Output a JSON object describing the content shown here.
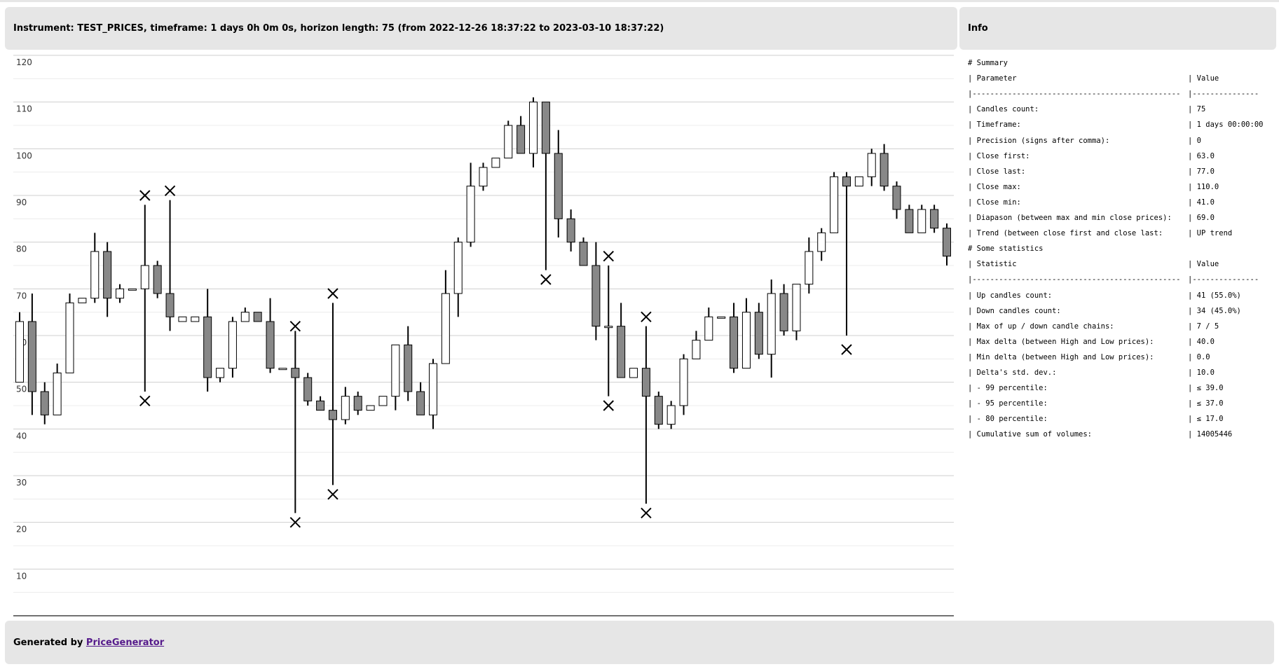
{
  "chart_data": {
    "type": "candlestick",
    "title": "Instrument: TEST_PRICES, timeframe: 1 days 0h 0m 0s, horizon length: 75 (from 2022-12-26 18:37:22 to 2023-03-10 18:37:22)",
    "open": [
      50,
      63,
      48,
      43,
      52,
      67,
      68,
      78,
      68,
      70,
      70,
      75,
      69,
      63,
      63,
      64,
      51,
      53,
      63,
      65,
      63,
      53,
      53,
      51,
      46,
      44,
      42,
      47,
      44,
      45,
      47,
      58,
      48,
      43,
      54,
      69,
      80,
      92,
      96,
      98,
      105,
      99,
      110,
      99,
      85,
      80,
      75,
      62,
      62,
      51,
      53,
      47,
      41,
      45,
      55,
      59,
      64,
      64,
      53,
      65,
      56,
      69,
      61,
      71,
      78,
      82,
      94,
      92,
      94,
      99,
      92,
      87,
      82,
      87,
      83
    ],
    "high": [
      65,
      69,
      50,
      54,
      69,
      68,
      82,
      80,
      71,
      70,
      88,
      76,
      89,
      64,
      64,
      70,
      53,
      64,
      66,
      65,
      68,
      53,
      61,
      52,
      47,
      67,
      49,
      48,
      45,
      47,
      58,
      62,
      50,
      55,
      74,
      81,
      97,
      97,
      98,
      106,
      107,
      111,
      110,
      104,
      87,
      81,
      80,
      75,
      67,
      53,
      62,
      48,
      46,
      56,
      61,
      66,
      64,
      67,
      68,
      67,
      72,
      71,
      71,
      81,
      83,
      95,
      95,
      94,
      100,
      101,
      93,
      88,
      88,
      88,
      84
    ],
    "low": [
      50,
      43,
      41,
      43,
      52,
      67,
      67,
      64,
      67,
      70,
      48,
      68,
      61,
      63,
      63,
      48,
      50,
      51,
      63,
      63,
      52,
      53,
      22,
      45,
      44,
      28,
      41,
      43,
      44,
      45,
      44,
      46,
      43,
      40,
      54,
      64,
      79,
      91,
      96,
      98,
      99,
      96,
      74,
      81,
      78,
      75,
      59,
      47,
      51,
      51,
      24,
      40,
      40,
      43,
      55,
      59,
      64,
      52,
      53,
      55,
      51,
      60,
      59,
      69,
      76,
      82,
      60,
      92,
      92,
      91,
      85,
      82,
      82,
      82,
      75
    ],
    "close": [
      63,
      48,
      43,
      52,
      67,
      68,
      78,
      68,
      70,
      70,
      75,
      69,
      64,
      64,
      64,
      51,
      53,
      63,
      65,
      63,
      53,
      53,
      51,
      46,
      44,
      42,
      47,
      44,
      45,
      47,
      58,
      48,
      43,
      54,
      69,
      80,
      92,
      96,
      98,
      105,
      99,
      110,
      99,
      85,
      80,
      75,
      62,
      62,
      51,
      53,
      47,
      41,
      45,
      55,
      59,
      64,
      64,
      53,
      65,
      56,
      69,
      61,
      71,
      78,
      82,
      94,
      92,
      94,
      99,
      92,
      87,
      82,
      87,
      83,
      77
    ],
    "marker_high": [
      null,
      null,
      null,
      null,
      null,
      null,
      null,
      null,
      null,
      null,
      90,
      null,
      91,
      null,
      null,
      null,
      null,
      null,
      null,
      null,
      null,
      null,
      62,
      null,
      null,
      69,
      null,
      null,
      null,
      null,
      null,
      null,
      null,
      null,
      null,
      null,
      null,
      null,
      null,
      null,
      null,
      null,
      null,
      null,
      null,
      null,
      null,
      77,
      null,
      null,
      64,
      null,
      null,
      null,
      null,
      null,
      null,
      null,
      null,
      null,
      null,
      null,
      null,
      null,
      null,
      null,
      null,
      null,
      null,
      null,
      null,
      null,
      null,
      null,
      null
    ],
    "marker_low": [
      null,
      null,
      null,
      null,
      null,
      null,
      null,
      null,
      null,
      null,
      46,
      null,
      null,
      null,
      null,
      null,
      null,
      null,
      null,
      null,
      null,
      null,
      20,
      null,
      null,
      26,
      null,
      null,
      null,
      null,
      null,
      null,
      null,
      null,
      null,
      null,
      null,
      null,
      null,
      null,
      null,
      null,
      72,
      null,
      null,
      null,
      null,
      45,
      null,
      null,
      22,
      null,
      null,
      null,
      null,
      null,
      null,
      null,
      null,
      null,
      null,
      null,
      null,
      null,
      null,
      null,
      57,
      null,
      null,
      null,
      null,
      null,
      null,
      null,
      null
    ],
    "up_color": "#ffffff",
    "down_color": "#888888",
    "ylim": [
      0,
      120
    ],
    "yticks": [
      10,
      20,
      30,
      40,
      50,
      60,
      70,
      80,
      90,
      100,
      110,
      120
    ],
    "minor_yticks": [
      5,
      15,
      25,
      35,
      45,
      55,
      65,
      75,
      85,
      95,
      105,
      115
    ],
    "grid": true
  },
  "info": {
    "title": "Info",
    "rows": [
      [
        "# Summary"
      ],
      [
        "| Parameter",
        "| Value"
      ],
      [
        "|-----------------------------------------------",
        "|---------------"
      ],
      [
        "| Candles count:",
        "| 75"
      ],
      [
        "| Timeframe:",
        "| 1 days 00:00:00"
      ],
      [
        "| Precision (signs after comma):",
        "| 0"
      ],
      [
        "| Close first:",
        "| 63.0"
      ],
      [
        "| Close last:",
        "| 77.0"
      ],
      [
        "| Close max:",
        "| 110.0"
      ],
      [
        "| Close min:",
        "| 41.0"
      ],
      [
        "| Diapason (between max and min close prices):",
        "| 69.0"
      ],
      [
        "| Trend (between close first and close last:",
        "| UP trend"
      ],
      [
        "# Some statistics"
      ],
      [
        "| Statistic",
        "| Value"
      ],
      [
        "|-----------------------------------------------",
        "|---------------"
      ],
      [
        "| Up candles count:",
        "| 41 (55.0%)"
      ],
      [
        "| Down candles count:",
        "| 34 (45.0%)"
      ],
      [
        "| Max of up / down candle chains:",
        "| 7 / 5"
      ],
      [
        "| Max delta (between High and Low prices):",
        "| 40.0"
      ],
      [
        "| Min delta (between High and Low prices):",
        "| 0.0"
      ],
      [
        "| Delta's std. dev.:",
        "| 10.0"
      ],
      [
        "| - 99 percentile:",
        "| ≤ 39.0"
      ],
      [
        "| - 95 percentile:",
        "| ≤ 37.0"
      ],
      [
        "| - 80 percentile:",
        "| ≤ 17.0"
      ],
      [
        "| Cumulative sum of volumes:",
        "| 14005446"
      ]
    ]
  },
  "footer": {
    "text": "Generated by",
    "link": "PriceGenerator"
  }
}
